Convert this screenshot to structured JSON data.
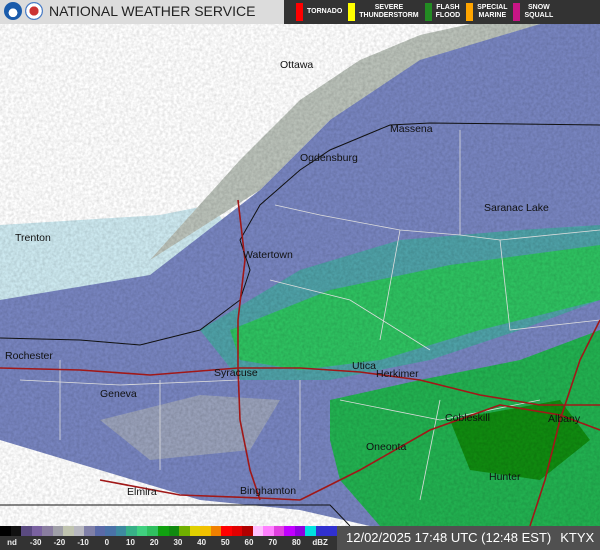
{
  "header": {
    "title": "NATIONAL WEATHER SERVICE",
    "logos": [
      "noaa-logo",
      "nws-logo"
    ],
    "warnings": [
      {
        "label": "TORNADO",
        "color": "#ff0000"
      },
      {
        "label": "SEVERE\nTHUNDERSTORM",
        "color": "#ffff00"
      },
      {
        "label": "FLASH\nFLOOD",
        "color": "#228b22"
      },
      {
        "label": "SPECIAL\nMARINE",
        "color": "#ffa500"
      },
      {
        "label": "SNOW\nSQUALL",
        "color": "#c71585"
      }
    ]
  },
  "map": {
    "cities": [
      {
        "name": "Ottawa"
      },
      {
        "name": "Massena"
      },
      {
        "name": "Ogdensburg"
      },
      {
        "name": "Saranac Lake"
      },
      {
        "name": "Trenton"
      },
      {
        "name": "Watertown"
      },
      {
        "name": "Rochester"
      },
      {
        "name": "Syracuse"
      },
      {
        "name": "Utica"
      },
      {
        "name": "Herkimer"
      },
      {
        "name": "Geneva"
      },
      {
        "name": "Cobleskill"
      },
      {
        "name": "Albany"
      },
      {
        "name": "Oneonta"
      },
      {
        "name": "Hunter"
      },
      {
        "name": "Elmira"
      },
      {
        "name": "Binghamton"
      }
    ]
  },
  "legend": {
    "ticks": [
      "nd",
      "-30",
      "-20",
      "-10",
      "0",
      "10",
      "20",
      "30",
      "40",
      "50",
      "60",
      "70",
      "80",
      "dBZ"
    ],
    "colors": [
      "#000",
      "#111",
      "#5a4a80",
      "#7a62a0",
      "#8a7ea0",
      "#a0a0a8",
      "#c0c4b0",
      "#b8b8c0",
      "#8080a8",
      "#5a6aa8",
      "#4a72a8",
      "#3e8aa0",
      "#38b088",
      "#40d080",
      "#30c060",
      "#10a010",
      "#108a10",
      "#70b000",
      "#e0d000",
      "#f0c000",
      "#f08000",
      "#ff0000",
      "#e00000",
      "#b00000",
      "#ffc0ff",
      "#ff80ff",
      "#e040e0",
      "#c000ff",
      "#9000e0",
      "#00e0e0",
      "#3030d0",
      "#3030d0"
    ]
  },
  "timestamp": {
    "datetime": "12/02/2025 17:48 UTC (12:48 EST)",
    "station": "KTYX"
  }
}
